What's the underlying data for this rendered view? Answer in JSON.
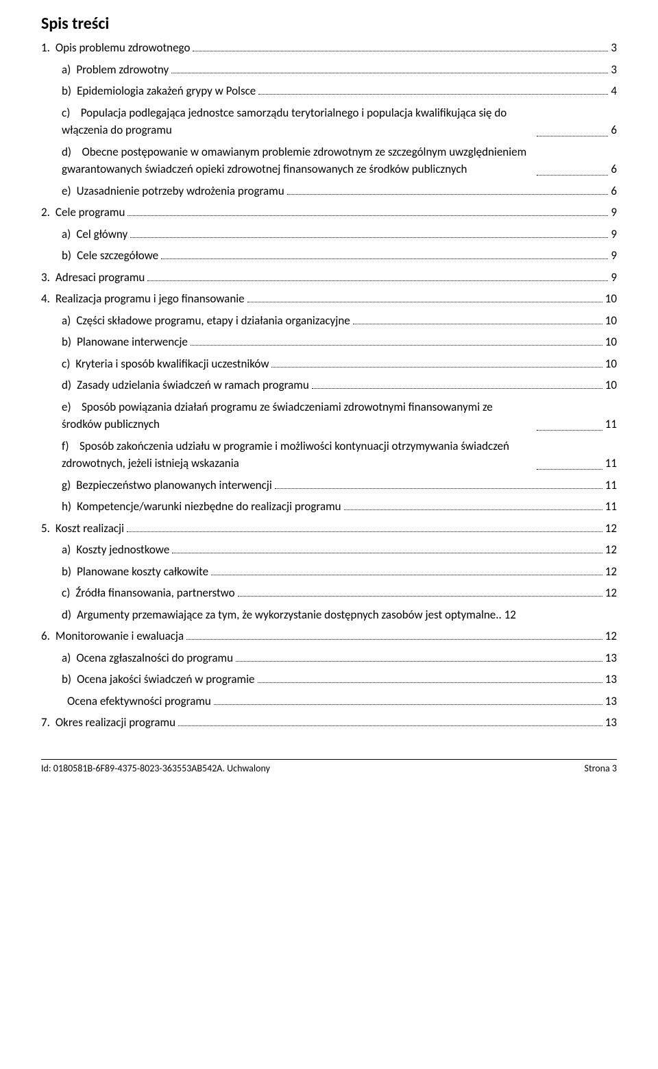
{
  "title": "Spis treści",
  "entries": [
    {
      "num": "1.",
      "label": "Opis problemu zdrowotnego",
      "page": "3",
      "indent": 0
    },
    {
      "num": "a)",
      "label": "Problem zdrowotny",
      "page": "3",
      "indent": 1,
      "leading_dots": false
    },
    {
      "num": "b)",
      "label": "Epidemiologia zakażeń grypy w Polsce",
      "page": "4",
      "indent": 1,
      "leading_dots": false,
      "trail_dots_before_page": true
    },
    {
      "num": "c)",
      "label": "Populacja podlegająca jednostce samorządu terytorialnego i populacja kwalifikująca się do włączenia do programu",
      "page": "6",
      "indent": 1,
      "multiline": true
    },
    {
      "num": "d)",
      "label": "Obecne postępowanie w omawianym problemie zdrowotnym ze szczególnym uwzględnieniem gwarantowanych świadczeń opieki zdrowotnej finansowanych ze środków publicznych",
      "page": "6",
      "indent": 1,
      "multiline": true
    },
    {
      "num": "e)",
      "label": "Uzasadnienie potrzeby wdrożenia programu",
      "page": "6",
      "indent": 1
    },
    {
      "num": "2.",
      "label": "Cele programu",
      "page": "9",
      "indent": 0
    },
    {
      "num": "a)",
      "label": "Cel główny",
      "page": "9",
      "indent": 1
    },
    {
      "num": "b)",
      "label": "Cele szczegółowe",
      "page": "9",
      "indent": 1
    },
    {
      "num": "3.",
      "label": "Adresaci programu",
      "page": "9",
      "indent": 0
    },
    {
      "num": "4.",
      "label": "Realizacja programu i jego finansowanie",
      "page": "10",
      "indent": 0,
      "leading_dots": false
    },
    {
      "num": "a)",
      "label": "Części składowe programu, etapy i działania organizacyjne",
      "page": "10",
      "indent": 1
    },
    {
      "num": "b)",
      "label": "Planowane interwencje",
      "page": "10",
      "indent": 1
    },
    {
      "num": "c)",
      "label": "Kryteria i sposób kwalifikacji uczestników",
      "page": "10",
      "indent": 1
    },
    {
      "num": "d)",
      "label": "Zasady udzielania świadczeń w ramach programu",
      "page": "10",
      "indent": 1
    },
    {
      "num": "e)",
      "label": "Sposób powiązania działań programu ze świadczeniami zdrowotnymi finansowanymi ze środków publicznych",
      "page": "11",
      "indent": 1,
      "multiline": true
    },
    {
      "num": "f)",
      "label": "Sposób zakończenia udziału w programie i możliwości kontynuacji otrzymywania świadczeń zdrowotnych, jeżeli istnieją wskazania",
      "page": "11",
      "indent": 1,
      "multiline": true
    },
    {
      "num": "g)",
      "label": "Bezpieczeństwo planowanych interwencji",
      "page": "11",
      "indent": 1
    },
    {
      "num": "h)",
      "label": "Kompetencje/warunki niezbędne do realizacji programu",
      "page": "11",
      "indent": 1
    },
    {
      "num": "5.",
      "label": "Koszt realizacji",
      "page": "12",
      "indent": 0
    },
    {
      "num": "a)",
      "label": "Koszty jednostkowe",
      "page": "12",
      "indent": 1
    },
    {
      "num": "b)",
      "label": "Planowane koszty całkowite",
      "page": "12",
      "indent": 1
    },
    {
      "num": "c)",
      "label": "Źródła finansowania, partnerstwo",
      "page": "12",
      "indent": 1
    },
    {
      "num": "d)",
      "label": "Argumenty przemawiające za tym, że wykorzystanie dostępnych zasobów jest optymalne",
      "page": "12",
      "indent": 1,
      "two_dots": true
    },
    {
      "num": "6.",
      "label": "Monitorowanie i ewaluacja",
      "page": "12",
      "indent": 0
    },
    {
      "num": "a)",
      "label": "Ocena zgłaszalności do programu",
      "page": "13",
      "indent": 1
    },
    {
      "num": "b)",
      "label": "Ocena jakości świadczeń w programie",
      "page": "13",
      "indent": 1
    },
    {
      "num": "",
      "label": "Ocena efektywności programu",
      "page": "13",
      "indent": 1
    },
    {
      "num": "7.",
      "label": "Okres realizacji programu",
      "page": "13",
      "indent": 0
    }
  ],
  "footer": {
    "left": "Id: 0180581B-6F89-4375-8023-363553AB542A. Uchwalony",
    "right": "Strona 3"
  }
}
